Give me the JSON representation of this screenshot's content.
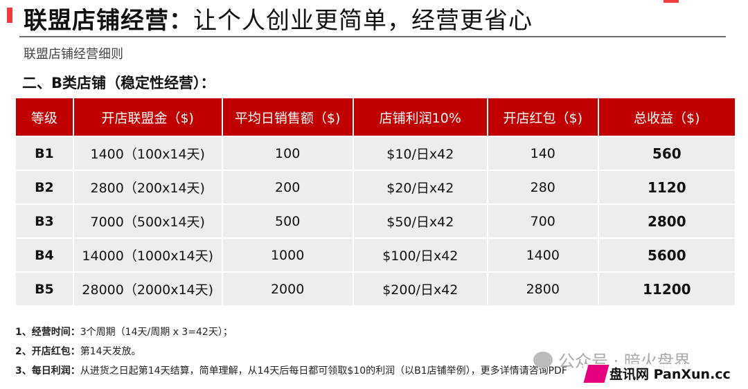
{
  "header": {
    "title_bold": "联盟店铺经营：",
    "title_rest": "让个人创业更简单，经营更省心",
    "subtitle": "联盟店铺经营细则",
    "section": "二、B类店铺（稳定性经营）："
  },
  "table": {
    "columns": [
      "等级",
      "开店联盟金（$)",
      "平均日销售额（$)",
      "店铺利润10%",
      "开店红包（$)",
      "总收益（$)"
    ],
    "rows": [
      [
        "B1",
        "1400（100x14天)",
        "100",
        "$10/日x42",
        "140",
        "560"
      ],
      [
        "B2",
        "2800（200x14天)",
        "200",
        "$20/日x42",
        "280",
        "1120"
      ],
      [
        "B3",
        "7000（500x14天)",
        "500",
        "$50/日x42",
        "700",
        "2800"
      ],
      [
        "B4",
        "14000（1000x14天)",
        "1000",
        "$100/日x42",
        "1400",
        "5600"
      ],
      [
        "B5",
        "28000（2000x14天)",
        "2000",
        "$200/日x42",
        "2800",
        "11200"
      ]
    ]
  },
  "notes": [
    {
      "label": "1、经营时间：",
      "text": "3个周期（14天/周期 x 3=42天）；"
    },
    {
      "label": "2、开店红包：",
      "text": "第14天发放。"
    },
    {
      "label": "3、每日利润：",
      "text": "从进货之日起第14天结算，简单理解，从14天后每日都可领取$10的利润（以B1店铺举例），更多详情请咨询PDF"
    }
  ],
  "watermark": {
    "text": "公众号 · 暗火盘界",
    "icon": "wechat-icon"
  },
  "logo": {
    "text": "盘讯网 PanXun.cc"
  },
  "colors": {
    "accent": "#c00000",
    "row_bg": "#ededed"
  }
}
